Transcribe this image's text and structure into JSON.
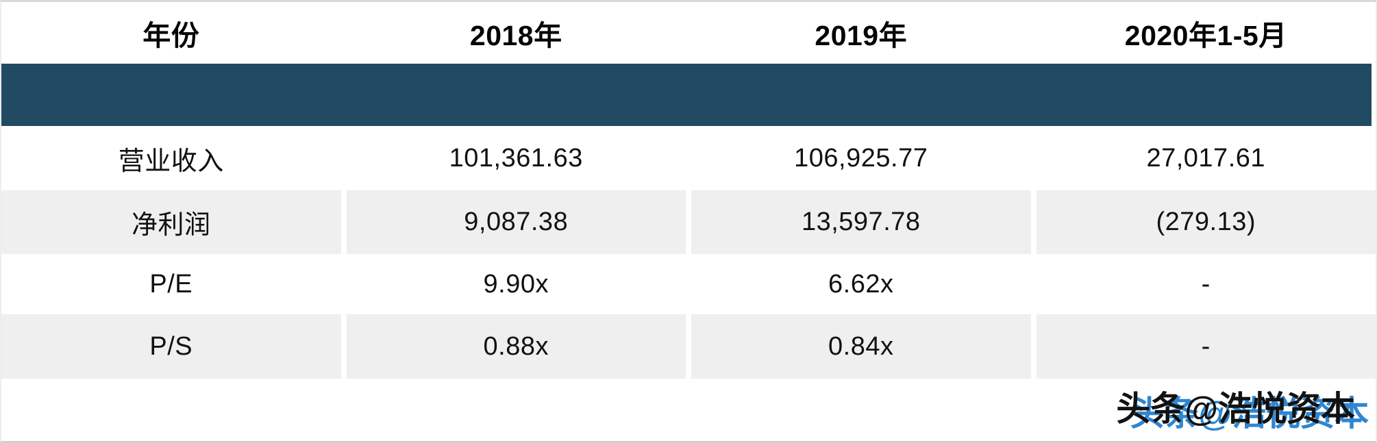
{
  "chart_data": {
    "type": "table",
    "columns": [
      "年份",
      "2018年",
      "2019年",
      "2020年1-5月"
    ],
    "rows": [
      {
        "label": "营业收入",
        "values": [
          "101,361.63",
          "106,925.77",
          "27,017.61"
        ]
      },
      {
        "label": "净利润",
        "values": [
          "9,087.38",
          "13,597.78",
          "(279.13)"
        ]
      },
      {
        "label": "P/E",
        "values": [
          "9.90x",
          "6.62x",
          "-"
        ]
      },
      {
        "label": "P/S",
        "values": [
          "0.88x",
          "0.84x",
          "-"
        ]
      }
    ],
    "layout_hints": {
      "striped": true,
      "empty_dark_band_below_header": true,
      "column_alignment": "center"
    }
  },
  "watermark": {
    "text": "头条@浩悦资本"
  },
  "colors": {
    "header_band": "#214a63",
    "alt_row": "#efefef",
    "watermark_blue": "#2f86d1",
    "watermark_dark": "#121212"
  }
}
